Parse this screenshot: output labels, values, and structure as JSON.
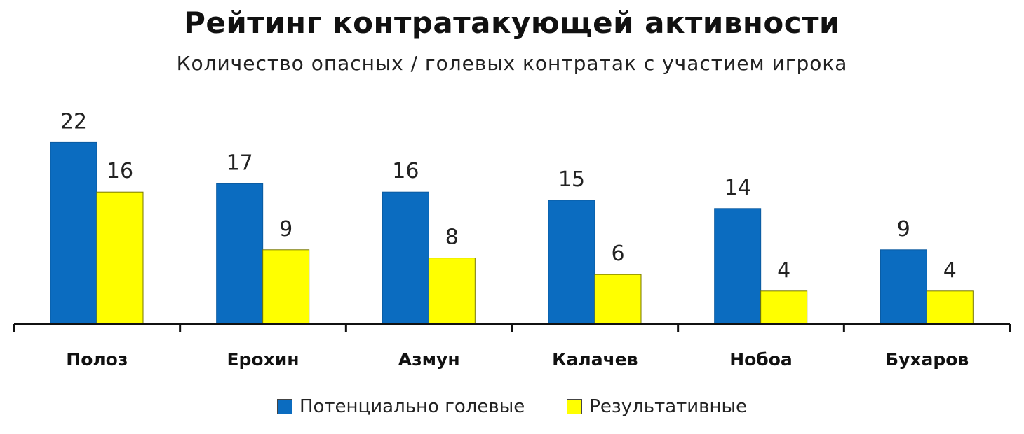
{
  "title": "Рейтинг контратакующей активности",
  "subtitle": "Количество опасных / голевых контратак с участием игрока",
  "chart_data": {
    "type": "bar",
    "categories": [
      "Полоз",
      "Ерохин",
      "Азмун",
      "Калачев",
      "Нобоа",
      "Бухаров"
    ],
    "series": [
      {
        "name": "Потенциально голевые",
        "color": "#0b6cc0",
        "values": [
          22,
          17,
          16,
          15,
          14,
          9
        ]
      },
      {
        "name": "Результативные",
        "color": "#ffff00",
        "values": [
          16,
          9,
          8,
          6,
          4,
          4
        ]
      }
    ],
    "ylim": [
      0,
      22
    ],
    "grid": false,
    "legend_position": "bottom"
  }
}
